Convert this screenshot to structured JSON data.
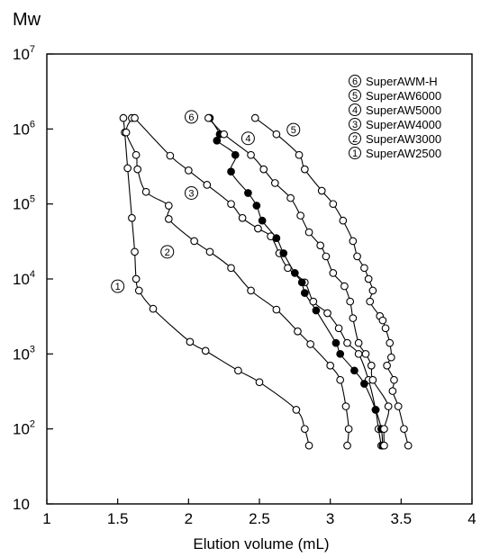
{
  "chart_data": {
    "type": "scatter",
    "title": "",
    "xlabel": "Elution volume (mL)",
    "ylabel": "Mw",
    "xlim": [
      1,
      4
    ],
    "ylim": [
      10,
      10000000
    ],
    "y_scale": "log",
    "x_ticks": [
      "1",
      "1.5",
      "2",
      "2.5",
      "3",
      "3.5",
      "4"
    ],
    "y_ticks": [
      {
        "base": "10",
        "exp": "7"
      },
      {
        "base": "10",
        "exp": "6"
      },
      {
        "base": "10",
        "exp": "5"
      },
      {
        "base": "10",
        "exp": "4"
      },
      {
        "base": "10",
        "exp": "3"
      },
      {
        "base": "10",
        "exp": "2"
      },
      {
        "base": "10",
        "exp": ""
      }
    ],
    "grid": false,
    "legend_position": "top-right",
    "legend": [
      {
        "num": "6",
        "label": "SuperAWM-H"
      },
      {
        "num": "5",
        "label": "SuperAW6000"
      },
      {
        "num": "4",
        "label": "SuperAW5000"
      },
      {
        "num": "3",
        "label": "SuperAW4000"
      },
      {
        "num": "2",
        "label": "SuperAW3000"
      },
      {
        "num": "1",
        "label": "SuperAW2500"
      }
    ],
    "series": [
      {
        "name": "SuperAW2500",
        "num": "1",
        "filled": false,
        "label_at": [
          1.5,
          8000
        ],
        "points": [
          [
            1.54,
            1400000
          ],
          [
            1.55,
            900000
          ],
          [
            1.57,
            300000
          ],
          [
            1.6,
            65000
          ],
          [
            1.62,
            23000
          ],
          [
            1.63,
            10000
          ],
          [
            1.65,
            7000
          ],
          [
            1.75,
            4000
          ],
          [
            2.01,
            1450
          ],
          [
            2.12,
            1100
          ],
          [
            2.35,
            600
          ],
          [
            2.5,
            420
          ],
          [
            2.76,
            180
          ],
          [
            2.82,
            100
          ],
          [
            2.85,
            60
          ]
        ]
      },
      {
        "name": "SuperAW3000",
        "num": "2",
        "filled": false,
        "label_at": [
          1.85,
          23000
        ],
        "points": [
          [
            1.56,
            900000
          ],
          [
            1.6,
            1400000
          ],
          [
            1.63,
            450000
          ],
          [
            1.64,
            290000
          ],
          [
            1.7,
            145000
          ],
          [
            1.86,
            95000
          ],
          [
            1.86,
            63000
          ],
          [
            2.04,
            32000
          ],
          [
            2.15,
            23000
          ],
          [
            2.3,
            14000
          ],
          [
            2.44,
            7000
          ],
          [
            2.62,
            3900
          ],
          [
            2.77,
            2000
          ],
          [
            2.86,
            1350
          ],
          [
            3.0,
            700
          ],
          [
            3.07,
            450
          ],
          [
            3.11,
            200
          ],
          [
            3.13,
            100
          ],
          [
            3.12,
            60
          ]
        ]
      },
      {
        "name": "SuperAW4000",
        "num": "3",
        "filled": false,
        "label_at": [
          2.02,
          140000
        ],
        "points": [
          [
            1.62,
            1400000
          ],
          [
            1.87,
            440000
          ],
          [
            2.0,
            280000
          ],
          [
            2.13,
            180000
          ],
          [
            2.3,
            100000
          ],
          [
            2.38,
            65000
          ],
          [
            2.49,
            47000
          ],
          [
            2.58,
            37000
          ],
          [
            2.64,
            22000
          ],
          [
            2.7,
            14000
          ],
          [
            2.82,
            9000
          ],
          [
            2.88,
            5000
          ],
          [
            2.98,
            3500
          ],
          [
            3.06,
            2200
          ],
          [
            3.12,
            1400
          ],
          [
            3.2,
            1000
          ],
          [
            3.27,
            450
          ],
          [
            3.32,
            180
          ],
          [
            3.34,
            100
          ],
          [
            3.36,
            60
          ]
        ]
      },
      {
        "name": "SuperAWM-H",
        "num": "6",
        "filled": true,
        "label_at": [
          2.02,
          1450000
        ],
        "points": [
          [
            2.15,
            1400000
          ],
          [
            2.22,
            850000
          ],
          [
            2.2,
            700000
          ],
          [
            2.33,
            450000
          ],
          [
            2.3,
            270000
          ],
          [
            2.42,
            140000
          ],
          [
            2.48,
            95000
          ],
          [
            2.52,
            60000
          ],
          [
            2.62,
            35000
          ],
          [
            2.67,
            22000
          ],
          [
            2.75,
            12000
          ],
          [
            2.8,
            9000
          ],
          [
            2.82,
            6500
          ],
          [
            2.9,
            3800
          ],
          [
            3.04,
            1400
          ],
          [
            3.07,
            1000
          ],
          [
            3.17,
            600
          ],
          [
            3.24,
            400
          ],
          [
            3.32,
            180
          ],
          [
            3.36,
            100
          ],
          [
            3.37,
            60
          ]
        ]
      },
      {
        "name": "SuperAW5000",
        "num": "4",
        "filled": false,
        "label_at": [
          2.42,
          750000
        ],
        "points": [
          [
            2.14,
            1400000
          ],
          [
            2.25,
            850000
          ],
          [
            2.44,
            450000
          ],
          [
            2.53,
            290000
          ],
          [
            2.61,
            190000
          ],
          [
            2.72,
            120000
          ],
          [
            2.79,
            70000
          ],
          [
            2.85,
            42000
          ],
          [
            2.93,
            28000
          ],
          [
            2.97,
            20000
          ],
          [
            3.02,
            12000
          ],
          [
            3.1,
            8000
          ],
          [
            3.14,
            5000
          ],
          [
            3.16,
            3000
          ],
          [
            3.2,
            1400
          ],
          [
            3.25,
            1000
          ],
          [
            3.29,
            700
          ],
          [
            3.3,
            450
          ],
          [
            3.38,
            100
          ],
          [
            3.38,
            60
          ],
          [
            3.41,
            200
          ]
        ]
      },
      {
        "name": "SuperAW6000",
        "num": "5",
        "filled": false,
        "label_at": [
          2.74,
          980000
        ],
        "points": [
          [
            2.47,
            1400000
          ],
          [
            2.62,
            850000
          ],
          [
            2.78,
            450000
          ],
          [
            2.82,
            290000
          ],
          [
            2.94,
            150000
          ],
          [
            3.02,
            100000
          ],
          [
            3.09,
            60000
          ],
          [
            3.16,
            32000
          ],
          [
            3.19,
            20000
          ],
          [
            3.24,
            14000
          ],
          [
            3.27,
            10000
          ],
          [
            3.3,
            7000
          ],
          [
            3.28,
            5000
          ],
          [
            3.35,
            3200
          ],
          [
            3.39,
            2200
          ],
          [
            3.42,
            1400
          ],
          [
            3.43,
            900
          ],
          [
            3.45,
            450
          ],
          [
            3.48,
            200
          ],
          [
            3.52,
            100
          ],
          [
            3.55,
            60
          ],
          [
            3.37,
            2800
          ],
          [
            3.4,
            700
          ],
          [
            3.44,
            320
          ]
        ]
      }
    ]
  }
}
